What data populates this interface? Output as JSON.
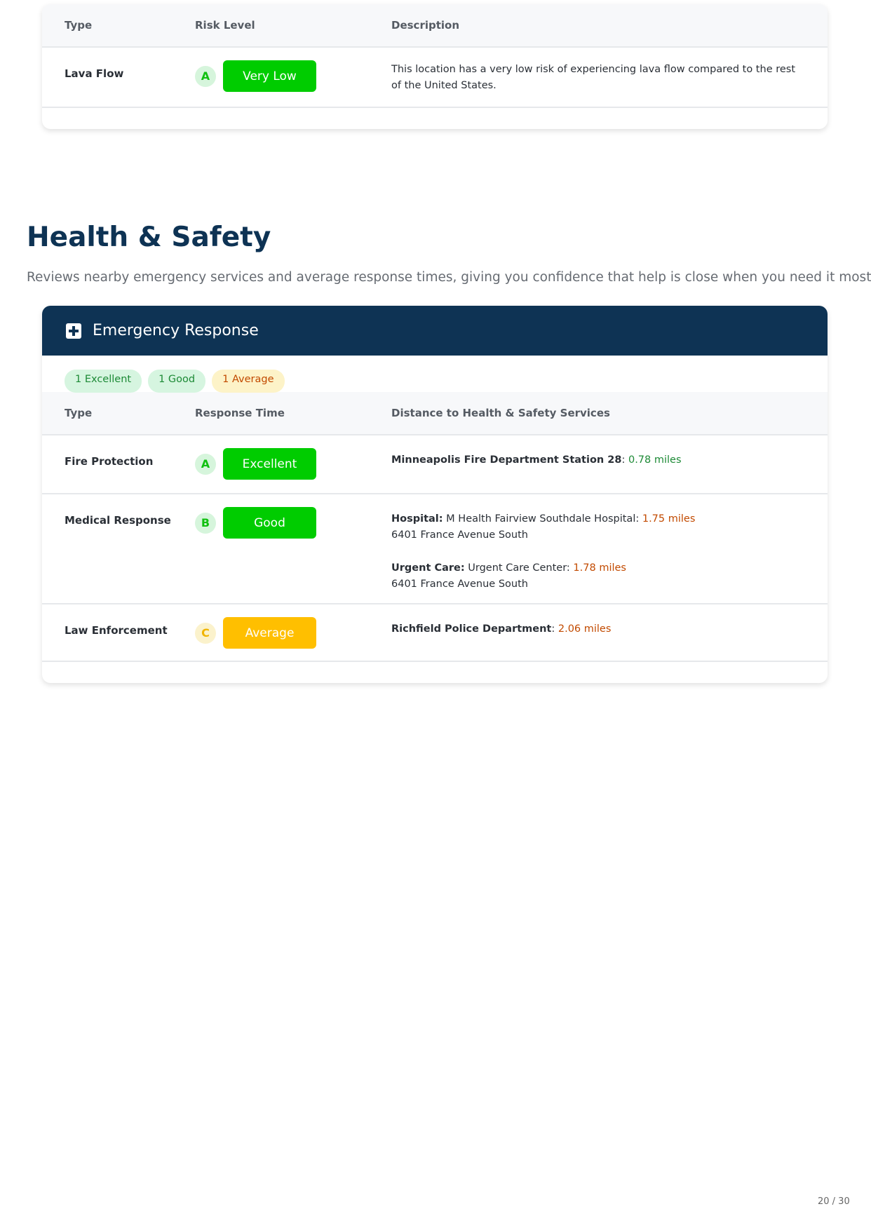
{
  "hazard_table": {
    "headers": [
      "Type",
      "Risk Level",
      "Description"
    ],
    "rows": [
      {
        "type": "Lava Flow",
        "grade": "A",
        "level": "Very Low",
        "description": "This location has a very low risk of experiencing lava flow compared to the rest of the United States."
      }
    ]
  },
  "section": {
    "title": "Health & Safety",
    "subtitle": "Reviews nearby emergency services and average response times, giving you confidence that help is close when you need it most."
  },
  "emergency": {
    "title": "Emergency Response",
    "icon": "plus-square-icon",
    "pills": [
      "1 Excellent",
      "1 Good",
      "1 Average"
    ],
    "headers": [
      "Type",
      "Response Time",
      "Distance to Health & Safety Services"
    ],
    "rows": [
      {
        "type": "Fire Protection",
        "grade": "A",
        "level": "Excellent",
        "name": "Minneapolis Fire Department Station 28",
        "distance": "0.78 miles"
      },
      {
        "type": "Medical Response",
        "grade": "B",
        "level": "Good",
        "hospital_label": "Hospital:",
        "hospital_name": "M Health Fairview Southdale Hospital:",
        "hospital_distance": "1.75 miles",
        "hospital_address": "6401 France Avenue South",
        "urgent_label": "Urgent Care:",
        "urgent_name": "Urgent Care Center:",
        "urgent_distance": "1.78 miles",
        "urgent_address": "6401 France Avenue South"
      },
      {
        "type": "Law Enforcement",
        "grade": "C",
        "level": "Average",
        "name": "Richfield Police Department",
        "distance": "2.06 miles"
      }
    ]
  },
  "colors": {
    "navy": "#0e3354",
    "green": "#00cc00",
    "amber": "#ffbf00"
  },
  "page": {
    "number": "20 / 30"
  }
}
